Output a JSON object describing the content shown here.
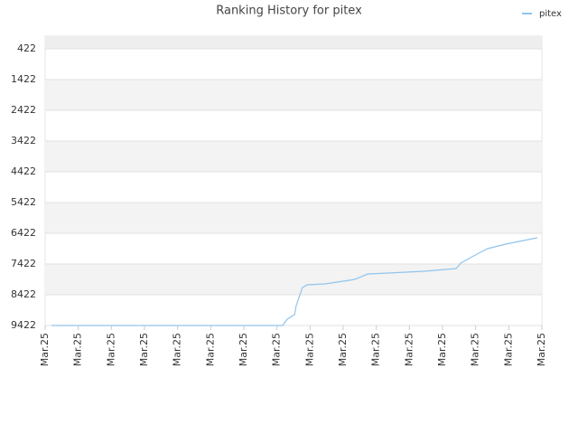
{
  "chart_data": {
    "type": "line",
    "title": "Ranking History for pitex",
    "x": [
      0.19,
      7.17,
      7.31,
      7.53,
      7.58,
      7.77,
      7.91,
      8.45,
      9.0,
      9.35,
      9.74,
      10.36,
      11.45,
      12.41,
      12.55,
      13.09,
      13.36,
      13.91,
      14.45,
      14.86
    ],
    "series": [
      {
        "name": "pitex",
        "color": "#90c4ec",
        "values": [
          9422,
          9422,
          9216,
          9069,
          8775,
          8186,
          8098,
          8069,
          7981,
          7922,
          7746,
          7716,
          7657,
          7569,
          7393,
          7069,
          6922,
          6775,
          6657,
          6569
        ]
      }
    ],
    "xlim": [
      0,
      15
    ],
    "xticks": [
      {
        "value": 0,
        "label": "Mar.25"
      },
      {
        "value": 1,
        "label": "Mar.25"
      },
      {
        "value": 2,
        "label": "Mar.25"
      },
      {
        "value": 3,
        "label": "Mar.25"
      },
      {
        "value": 4,
        "label": "Mar.25"
      },
      {
        "value": 5,
        "label": "Mar.25"
      },
      {
        "value": 6,
        "label": "Mar.25"
      },
      {
        "value": 7,
        "label": "Mar.25"
      },
      {
        "value": 8,
        "label": "Mar.25"
      },
      {
        "value": 9,
        "label": "Mar.25"
      },
      {
        "value": 10,
        "label": "Mar.25"
      },
      {
        "value": 11,
        "label": "Mar.25"
      },
      {
        "value": 12,
        "label": "Mar.25"
      },
      {
        "value": 13,
        "label": "Mar.25"
      },
      {
        "value": 14,
        "label": "Mar.25"
      },
      {
        "value": 15,
        "label": "Mar.25"
      }
    ],
    "ylim": [
      9422,
      10
    ],
    "yticks": [
      422,
      1422,
      2422,
      3422,
      4422,
      5422,
      6422,
      7422,
      8422,
      9422
    ],
    "grid": true,
    "legend": "top-right"
  }
}
